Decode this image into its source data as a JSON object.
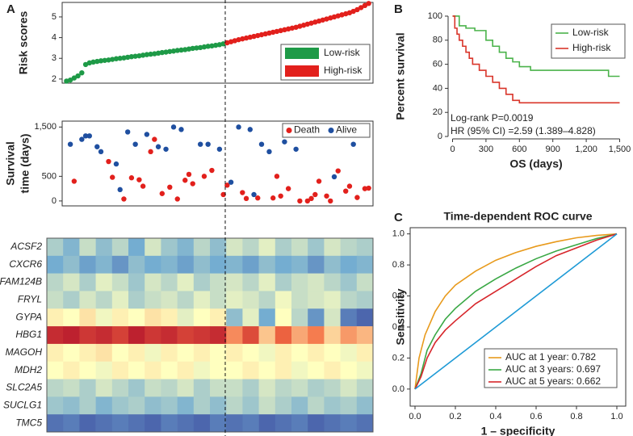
{
  "chart_data": [
    {
      "type": "scatter",
      "panel": "A",
      "ylabel": "Risk scores",
      "ylim": [
        1.8,
        5.7
      ],
      "yticks": [
        2,
        3,
        4,
        5
      ],
      "legend": "bottom-right",
      "series": [
        {
          "name": "Low-risk",
          "color": "#1e9a47",
          "values": [
            1.9,
            1.95,
            2.05,
            2.15,
            2.3,
            2.7,
            2.78,
            2.82,
            2.85,
            2.88,
            2.9,
            2.92,
            2.95,
            2.98,
            3.0,
            3.02,
            3.05,
            3.08,
            3.1,
            3.12,
            3.15,
            3.18,
            3.2,
            3.22,
            3.25,
            3.28,
            3.3,
            3.33,
            3.35,
            3.38,
            3.4,
            3.42,
            3.45,
            3.48,
            3.5,
            3.52,
            3.55,
            3.58,
            3.6,
            3.63,
            3.66,
            3.7
          ]
        },
        {
          "name": "High-risk",
          "color": "#e2201c",
          "values": [
            3.75,
            3.8,
            3.85,
            3.9,
            3.94,
            3.98,
            4.02,
            4.06,
            4.1,
            4.14,
            4.18,
            4.22,
            4.26,
            4.3,
            4.34,
            4.38,
            4.42,
            4.46,
            4.5,
            4.55,
            4.6,
            4.65,
            4.7,
            4.75,
            4.8,
            4.85,
            4.9,
            4.95,
            5.0,
            5.05,
            5.1,
            5.15,
            5.2,
            5.27,
            5.35,
            5.45,
            5.55,
            5.65
          ]
        }
      ]
    },
    {
      "type": "scatter",
      "ylabel": [
        "Survival",
        "time (days)"
      ],
      "ylim": [
        -100,
        1620
      ],
      "yticks": [
        0,
        500,
        {
          "value": 1500,
          "label": "1,500"
        }
      ],
      "legend": "top-right",
      "series": [
        {
          "name": "Death",
          "color": "#e2201c",
          "x": [
            3,
            12,
            13,
            16,
            18,
            20,
            21,
            23,
            24,
            26,
            28,
            30,
            32,
            33,
            34,
            37,
            39,
            42,
            43,
            47,
            48,
            51,
            55,
            56,
            57,
            59,
            62,
            64,
            65,
            66,
            67,
            69,
            70,
            72,
            74,
            75,
            77,
            79,
            80
          ],
          "values": [
            400,
            800,
            480,
            40,
            470,
            430,
            300,
            1000,
            1250,
            150,
            280,
            40,
            420,
            540,
            350,
            500,
            620,
            130,
            320,
            170,
            50,
            60,
            60,
            500,
            100,
            250,
            0,
            0,
            50,
            130,
            400,
            100,
            0,
            610,
            200,
            300,
            70,
            250,
            260
          ]
        },
        {
          "name": "Alive",
          "color": "#1f4fa0",
          "x": [
            2,
            5,
            6,
            7,
            9,
            10,
            14,
            15,
            17,
            19,
            22,
            25,
            27,
            29,
            31,
            36,
            38,
            41,
            44,
            46,
            49,
            50,
            52,
            54,
            58,
            60,
            61,
            63,
            68,
            71,
            73,
            76
          ],
          "values": [
            1150,
            1250,
            1320,
            1320,
            1100,
            1000,
            750,
            230,
            1400,
            1150,
            1350,
            1100,
            1050,
            1500,
            1450,
            1150,
            1150,
            1050,
            380,
            1500,
            1450,
            130,
            1150,
            1000,
            1200,
            1400,
            1050,
            1350,
            1400,
            490,
            1450,
            1150
          ]
        }
      ]
    },
    {
      "type": "heatmap",
      "categories": [
        "ACSF2",
        "CXCR6",
        "FAM124B",
        "FRYL",
        "GYPA",
        "HBG1",
        "MAGOH",
        "MDH2",
        "SLC2A5",
        "SUCLG1",
        "TMC5"
      ],
      "zlim": [
        -2,
        2
      ],
      "colors": [
        "#313695",
        "#74add1",
        "#ffffbf",
        "#f46d43",
        "#a50026"
      ],
      "values": [
        [
          -0.6,
          -0.9,
          -0.4,
          -0.8,
          -0.5,
          -1.0,
          -0.3,
          -0.7,
          -0.9,
          -0.5,
          -0.8,
          -0.3,
          -0.5,
          -0.2,
          -0.6,
          -0.4,
          -0.7,
          -0.3,
          -0.5,
          -0.6
        ],
        [
          -1.0,
          -0.8,
          -1.1,
          -0.9,
          -1.2,
          -0.8,
          -1.0,
          -0.9,
          -1.1,
          -0.8,
          -1.0,
          -0.9,
          -1.1,
          -0.8,
          -1.0,
          -0.9,
          -1.2,
          -0.8,
          -1.0,
          -0.9
        ],
        [
          -0.5,
          -0.3,
          -0.6,
          -0.2,
          -0.4,
          -0.7,
          -0.3,
          -0.5,
          -0.2,
          -0.6,
          -0.4,
          -0.3,
          -0.5,
          -0.2,
          -0.6,
          -0.4,
          -0.3,
          -0.5,
          -0.7,
          -0.4
        ],
        [
          -0.4,
          -0.6,
          -0.3,
          -0.5,
          -0.2,
          -0.6,
          -0.4,
          -0.3,
          -0.5,
          -0.2,
          -0.4,
          -0.2,
          -0.3,
          -0.5,
          -0.1,
          -0.4,
          -0.3,
          -0.2,
          -0.5,
          -0.6
        ],
        [
          0.1,
          0.0,
          0.2,
          -0.1,
          0.1,
          0.0,
          0.2,
          0.1,
          -0.2,
          0.0,
          0.1,
          -0.8,
          -0.2,
          -1.0,
          0.0,
          -0.5,
          -1.2,
          -0.3,
          -1.4,
          -1.6
        ],
        [
          1.6,
          1.7,
          1.5,
          1.6,
          1.4,
          1.7,
          1.5,
          1.6,
          1.4,
          1.5,
          1.6,
          0.8,
          1.3,
          0.4,
          1.1,
          0.6,
          0.9,
          0.3,
          0.7,
          0.5
        ],
        [
          0.1,
          0.0,
          0.1,
          0.2,
          0.0,
          0.1,
          -0.1,
          0.1,
          0.0,
          0.1,
          0.0,
          0.1,
          0.0,
          -0.1,
          0.1,
          0.0,
          0.1,
          0.0,
          -0.1,
          0.1
        ],
        [
          0.0,
          0.1,
          0.0,
          -0.1,
          0.1,
          0.0,
          0.1,
          0.0,
          0.1,
          -0.1,
          0.0,
          0.0,
          0.1,
          0.0,
          0.1,
          -0.1,
          0.0,
          0.1,
          0.0,
          -0.1
        ],
        [
          -0.5,
          -0.4,
          -0.6,
          -0.3,
          -0.5,
          -0.7,
          -0.4,
          -0.5,
          -0.3,
          -0.6,
          -0.4,
          -0.4,
          -0.6,
          -0.3,
          -0.5,
          -0.4,
          -0.6,
          -0.5,
          -0.3,
          -0.5
        ],
        [
          -0.7,
          -0.8,
          -0.6,
          -0.9,
          -0.7,
          -0.6,
          -0.8,
          -0.7,
          -0.9,
          -0.6,
          -0.8,
          -0.5,
          -0.7,
          -0.4,
          -0.6,
          -0.8,
          -0.5,
          -0.7,
          -0.6,
          -0.8
        ],
        [
          -1.5,
          -1.4,
          -1.6,
          -1.5,
          -1.4,
          -1.5,
          -1.6,
          -1.4,
          -1.5,
          -1.6,
          -1.4,
          -1.5,
          -1.4,
          -1.6,
          -1.5,
          -1.4,
          -1.6,
          -1.5,
          -1.4,
          -1.5
        ]
      ]
    },
    {
      "type": "line",
      "panel": "B",
      "step": true,
      "xlabel": "OS (days)",
      "ylabel": "Percent survival",
      "xlim": [
        -40,
        1540
      ],
      "ylim": [
        -2,
        102
      ],
      "xticks": [
        0,
        300,
        600,
        900,
        {
          "value": 1200,
          "label": "1,200"
        },
        {
          "value": 1500,
          "label": "1,500"
        }
      ],
      "yticks": [
        0,
        20,
        40,
        60,
        80,
        100
      ],
      "legend": "top-right",
      "annotations": [
        "Log-rank P=0.0019",
        "HR (95% CI) =2.59 (1.389–4.828)"
      ],
      "series": [
        {
          "name": "Low-risk",
          "color": "#4bb34b",
          "x": [
            0,
            30,
            60,
            120,
            200,
            300,
            360,
            420,
            480,
            540,
            600,
            700,
            1400,
            1500
          ],
          "values": [
            100,
            100,
            92,
            90,
            88,
            80,
            75,
            70,
            65,
            62,
            58,
            55,
            50,
            50
          ]
        },
        {
          "name": "High-risk",
          "color": "#d9352a",
          "x": [
            0,
            20,
            40,
            60,
            90,
            120,
            150,
            180,
            240,
            300,
            360,
            420,
            480,
            540,
            600,
            1500
          ],
          "values": [
            100,
            90,
            85,
            80,
            75,
            70,
            65,
            60,
            55,
            50,
            45,
            40,
            35,
            30,
            28,
            28
          ]
        }
      ]
    },
    {
      "type": "line",
      "panel": "C",
      "title": "Time-dependent ROC curve",
      "xlabel": "1 – specificity",
      "ylabel": "Sensitivity",
      "xlim": [
        -0.024,
        1.044
      ],
      "ylim": [
        -0.11,
        1.04
      ],
      "xticks": [
        {
          "value": 0,
          "label": "0.0"
        },
        0.2,
        0.4,
        0.6,
        0.8,
        {
          "value": 1,
          "label": "1.0"
        }
      ],
      "yticks": [
        {
          "value": 0,
          "label": "0.0"
        },
        0.2,
        0.4,
        0.6,
        0.8,
        {
          "value": 1,
          "label": "1.0"
        }
      ],
      "legend": "bottom-right",
      "series": [
        {
          "name": "AUC at 1 year: 0.782",
          "color": "#e89a1c",
          "x": [
            0,
            0.02,
            0.05,
            0.1,
            0.15,
            0.2,
            0.3,
            0.4,
            0.5,
            0.6,
            0.7,
            0.8,
            0.9,
            1
          ],
          "values": [
            0,
            0.2,
            0.35,
            0.5,
            0.6,
            0.67,
            0.76,
            0.83,
            0.88,
            0.92,
            0.95,
            0.975,
            0.99,
            1
          ]
        },
        {
          "name": "AUC at 3 years: 0.697",
          "color": "#3aa845",
          "x": [
            0,
            0.03,
            0.06,
            0.1,
            0.15,
            0.2,
            0.3,
            0.4,
            0.5,
            0.6,
            0.7,
            0.8,
            0.9,
            1
          ],
          "values": [
            0,
            0.1,
            0.25,
            0.35,
            0.45,
            0.52,
            0.63,
            0.71,
            0.78,
            0.84,
            0.89,
            0.93,
            0.97,
            1
          ]
        },
        {
          "name": "AUC at 5 years: 0.662",
          "color": "#d7262b",
          "x": [
            0,
            0.03,
            0.06,
            0.1,
            0.15,
            0.2,
            0.3,
            0.4,
            0.5,
            0.6,
            0.7,
            0.8,
            0.9,
            1
          ],
          "values": [
            0,
            0.08,
            0.2,
            0.3,
            0.38,
            0.44,
            0.55,
            0.63,
            0.71,
            0.79,
            0.86,
            0.91,
            0.96,
            1
          ]
        },
        {
          "color": "#1e9ad6",
          "x": [
            0,
            1
          ],
          "values": [
            0,
            1
          ]
        }
      ]
    }
  ]
}
